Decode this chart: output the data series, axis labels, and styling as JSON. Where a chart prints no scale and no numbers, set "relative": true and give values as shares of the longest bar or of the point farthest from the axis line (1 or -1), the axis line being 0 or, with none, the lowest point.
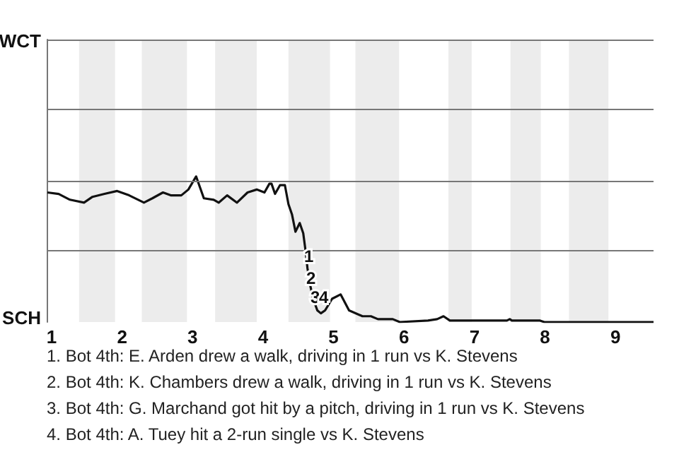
{
  "chart_data": {
    "type": "line",
    "relative": true,
    "x": [
      0.94,
      1.1,
      1.26,
      1.46,
      1.58,
      1.75,
      1.93,
      2.1,
      2.31,
      2.43,
      2.58,
      2.69,
      2.84,
      2.94,
      3.05,
      3.16,
      3.3,
      3.37,
      3.49,
      3.63,
      3.78,
      3.91,
      4.02,
      4.09,
      4.12,
      4.17,
      4.24,
      4.31,
      4.36,
      4.41,
      4.46,
      4.52,
      4.57,
      4.6,
      4.63,
      4.67,
      4.71,
      4.77,
      4.82,
      4.88,
      4.93,
      4.98,
      5.1,
      5.22,
      5.41,
      5.53,
      5.63,
      5.84,
      5.94,
      6.34,
      6.47,
      6.56,
      6.65,
      7.46,
      7.5,
      7.53,
      7.93,
      7.99,
      9.54
    ],
    "series": [
      {
        "color": "#111111",
        "values": [
          0.89,
          0.88,
          0.84,
          0.82,
          0.86,
          0.88,
          0.9,
          0.87,
          0.82,
          0.85,
          0.89,
          0.87,
          0.87,
          0.91,
          1,
          0.85,
          0.84,
          0.82,
          0.87,
          0.82,
          0.89,
          0.91,
          0.89,
          0.95,
          0.95,
          0.88,
          0.94,
          0.94,
          0.81,
          0.74,
          0.62,
          0.68,
          0.61,
          0.5,
          0.37,
          0.25,
          0.16,
          0.08,
          0.06,
          0.08,
          0.12,
          0.16,
          0.19,
          0.08,
          0.04,
          0.04,
          0.02,
          0.02,
          0,
          0.01,
          0.02,
          0.04,
          0.01,
          0.01,
          0.02,
          0.01,
          0.01,
          0,
          0
        ]
      }
    ],
    "xlim": [
      0.93,
      9.54
    ],
    "xticks": [
      1,
      2,
      3,
      4,
      5,
      6,
      7,
      8,
      9
    ],
    "ref_lines": [
      {
        "axis": "y",
        "value": 0.49,
        "color": "#777777"
      },
      {
        "axis": "y",
        "value": 0.97,
        "color": "#777777"
      },
      {
        "axis": "y",
        "value": 1.46,
        "color": "#777777"
      },
      {
        "axis": "y",
        "value": 1.94,
        "color": "#777777"
      }
    ],
    "marker": "none",
    "line_style": "solid",
    "bands": [
      {
        "axis": "x",
        "from": 1.39,
        "to": 1.9,
        "color": "#ececec"
      },
      {
        "axis": "x",
        "from": 2.28,
        "to": 2.92,
        "color": "#ececec"
      },
      {
        "axis": "x",
        "from": 3.32,
        "to": 3.91,
        "color": "#ececec"
      },
      {
        "axis": "x",
        "from": 4.36,
        "to": 4.95,
        "color": "#ececec"
      },
      {
        "axis": "x",
        "from": 5.31,
        "to": 5.93,
        "color": "#ececec"
      },
      {
        "axis": "x",
        "from": 6.63,
        "to": 6.96,
        "color": "#ececec"
      },
      {
        "axis": "x",
        "from": 7.51,
        "to": 7.94,
        "color": "#ececec"
      },
      {
        "axis": "x",
        "from": 8.34,
        "to": 8.9,
        "color": "#ececec"
      }
    ],
    "annotations": [
      "WCT",
      "SCH",
      {
        "text": "1",
        "x": 4.65,
        "y": 0.45
      },
      {
        "text": "2",
        "x": 4.68,
        "y": 0.3
      },
      {
        "text": "3",
        "x": 4.74,
        "y": 0.17
      },
      {
        "text": "4",
        "x": 4.86,
        "y": 0.17
      },
      "1. Bot 4th: E. Arden drew a walk, driving in 1 run vs K. Stevens",
      "2. Bot 4th: K. Chambers drew a walk, driving in 1 run vs K. Stevens",
      "3. Bot 4th: G. Marchand got hit by a pitch, driving in 1 run vs K. Stevens",
      "4. Bot 4th: A. Tuey hit a 2-run single vs K. Stevens"
    ]
  }
}
